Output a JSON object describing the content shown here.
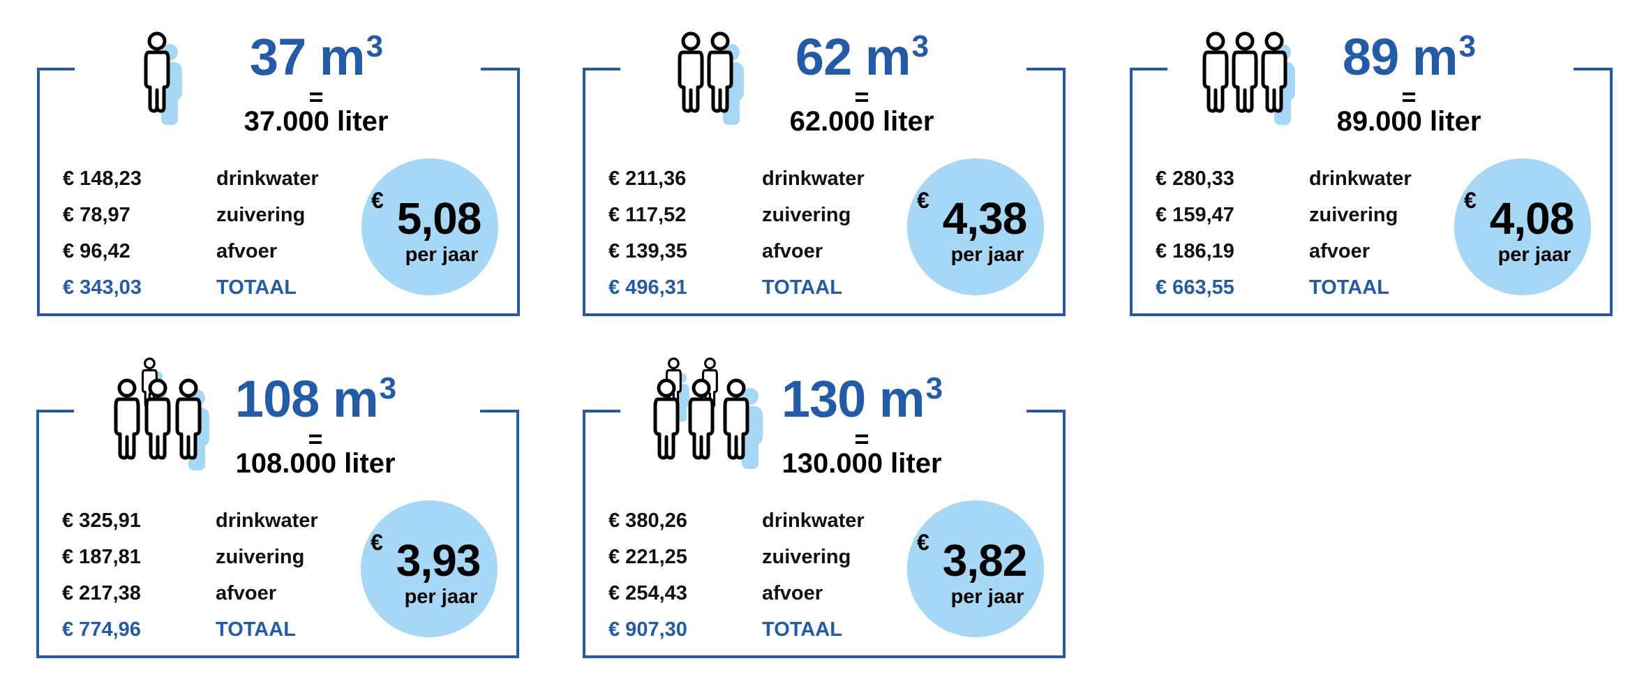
{
  "colors": {
    "accent_blue": "#235ba6",
    "circle_fill": "#a6d8f5",
    "text": "#000000"
  },
  "cards": [
    {
      "persons": 1,
      "volume": "37 m",
      "volume_sup": "3",
      "equals": "=",
      "liters": "37.000 liter",
      "rows": [
        {
          "amount": "€ 148,23",
          "label": "drinkwater"
        },
        {
          "amount": "€ 78,97",
          "label": "zuivering"
        },
        {
          "amount": "€ 96,42",
          "label": "afvoer"
        },
        {
          "amount": "€ 343,03",
          "label": "TOTAAL"
        }
      ],
      "badge": {
        "currency": "€",
        "price": "5,08",
        "period": "per jaar"
      }
    },
    {
      "persons": 2,
      "volume": "62 m",
      "volume_sup": "3",
      "equals": "=",
      "liters": "62.000 liter",
      "rows": [
        {
          "amount": "€ 211,36",
          "label": "drinkwater"
        },
        {
          "amount": "€ 117,52",
          "label": "zuivering"
        },
        {
          "amount": "€ 139,35",
          "label": "afvoer"
        },
        {
          "amount": "€ 496,31",
          "label": "TOTAAL"
        }
      ],
      "badge": {
        "currency": "€",
        "price": "4,38",
        "period": "per jaar"
      }
    },
    {
      "persons": 3,
      "volume": "89 m",
      "volume_sup": "3",
      "equals": "=",
      "liters": "89.000 liter",
      "rows": [
        {
          "amount": "€ 280,33",
          "label": "drinkwater"
        },
        {
          "amount": "€ 159,47",
          "label": "zuivering"
        },
        {
          "amount": "€ 186,19",
          "label": "afvoer"
        },
        {
          "amount": "€ 663,55",
          "label": "TOTAAL"
        }
      ],
      "badge": {
        "currency": "€",
        "price": "4,08",
        "period": "per jaar"
      }
    },
    {
      "persons": 4,
      "volume": "108 m",
      "volume_sup": "3",
      "equals": "=",
      "liters": "108.000 liter",
      "rows": [
        {
          "amount": "€ 325,91",
          "label": "drinkwater"
        },
        {
          "amount": "€ 187,81",
          "label": "zuivering"
        },
        {
          "amount": "€ 217,38",
          "label": "afvoer"
        },
        {
          "amount": "€ 774,96",
          "label": "TOTAAL"
        }
      ],
      "badge": {
        "currency": "€",
        "price": "3,93",
        "period": "per jaar"
      }
    },
    {
      "persons": 5,
      "volume": "130 m",
      "volume_sup": "3",
      "equals": "=",
      "liters": "130.000 liter",
      "rows": [
        {
          "amount": "€ 380,26",
          "label": "drinkwater"
        },
        {
          "amount": "€ 221,25",
          "label": "zuivering"
        },
        {
          "amount": "€ 254,43",
          "label": "afvoer"
        },
        {
          "amount": "€ 907,30",
          "label": "TOTAAL"
        }
      ],
      "badge": {
        "currency": "€",
        "price": "3,82",
        "period": "per jaar"
      }
    }
  ]
}
